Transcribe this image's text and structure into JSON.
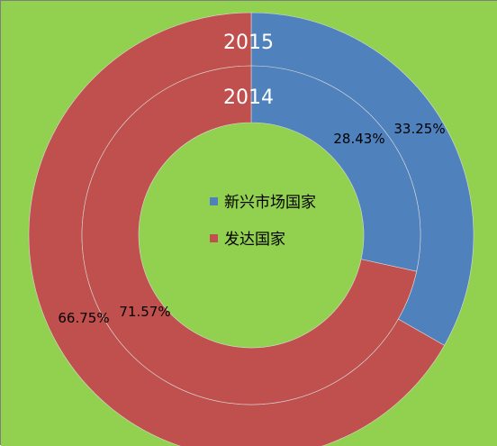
{
  "chart_data": {
    "type": "donut",
    "colors": {
      "background": "#92d050",
      "border": "#7f7f7f",
      "label_light": "#ffffff",
      "label_dark": "#000000"
    },
    "categories": [
      "新兴市场国家",
      "发达国家"
    ],
    "category_colors": [
      "#4f81bd",
      "#c0504d"
    ],
    "series": [
      {
        "name": "2015",
        "values": [
          33.25,
          66.75
        ],
        "labels": [
          "33.25%",
          "66.75%"
        ]
      },
      {
        "name": "2014",
        "values": [
          28.43,
          71.57
        ],
        "labels": [
          "28.43%",
          "71.57%"
        ]
      }
    ],
    "legend": {
      "position": "center",
      "items": [
        {
          "label": "新兴市场国家",
          "color": "#4f81bd"
        },
        {
          "label": "发达国家",
          "color": "#c0504d"
        }
      ]
    }
  }
}
